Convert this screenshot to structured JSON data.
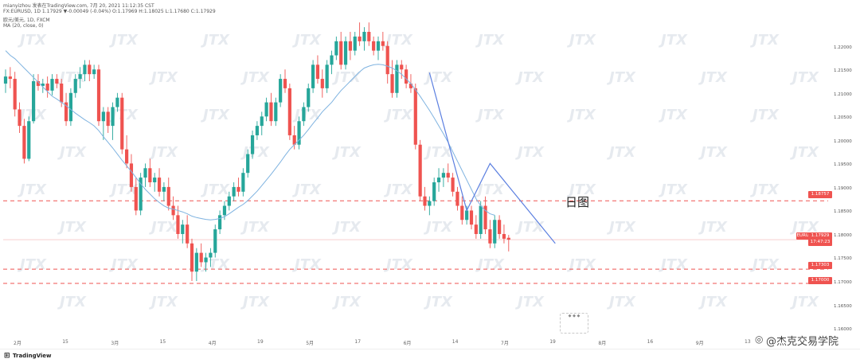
{
  "header": {
    "line1": "mianyizhou 发表在TradingView.com, 7月 20, 2021 11:12:35 CST",
    "line2": "FX:EURUSD, 1D 1.17929 ▼-0.00049 (-0.04%) O:1.17969 H:1.18025 L:1.17680 C:1.17929",
    "line3": "欧元/美元, 1D, FXCM",
    "line4": "MA (20, close, 0)"
  },
  "watermark": "JTX",
  "annotation": "日图",
  "footer_brand": "TradingView",
  "footer_credit": "@杰克交易学院",
  "tags": {
    "r1": "1.18757",
    "price_label": "EURUSD",
    "price": "1.17929",
    "time": "17:47:23",
    "s1": "1.17303",
    "s2": "1.17000"
  },
  "colors": {
    "bull": "#26a69a",
    "bear": "#ef5350",
    "ma": "#7fb3e0",
    "trend": "#5b7fe0",
    "level": "#ef5350"
  },
  "chart_data": {
    "type": "candlestick",
    "symbol": "EURUSD",
    "timeframe": "1D",
    "y_ticks": [
      1.22,
      1.215,
      1.21,
      1.205,
      1.2,
      1.195,
      1.19,
      1.185,
      1.18,
      1.175,
      1.17,
      1.165,
      1.16
    ],
    "y_tick_labels": [
      "1.22000",
      "1.21500",
      "1.21000",
      "1.20500",
      "1.20000",
      "1.19500",
      "1.19000",
      "1.18500",
      "1.18000",
      "1.17500",
      "1.17000",
      "1.16500",
      "1.16000"
    ],
    "ylim": [
      1.1595,
      1.2235
    ],
    "x_labels": [
      "2月",
      "15",
      "3月",
      "15",
      "4月",
      "19",
      "5月",
      "17",
      "6月",
      "14",
      "7月",
      "19",
      "8月",
      "16",
      "9月",
      "13"
    ],
    "levels": [
      1.18757,
      1.17303,
      1.17
    ],
    "candles": [
      {
        "o": 1.2125,
        "h": 1.2155,
        "l": 1.2105,
        "c": 1.214
      },
      {
        "o": 1.214,
        "h": 1.216,
        "l": 1.2115,
        "c": 1.2135
      },
      {
        "o": 1.2135,
        "h": 1.215,
        "l": 1.2055,
        "c": 1.207
      },
      {
        "o": 1.207,
        "h": 1.2085,
        "l": 1.202,
        "c": 1.2035
      },
      {
        "o": 1.2035,
        "h": 1.205,
        "l": 1.1955,
        "c": 1.1965
      },
      {
        "o": 1.1965,
        "h": 1.2055,
        "l": 1.196,
        "c": 1.2045
      },
      {
        "o": 1.2045,
        "h": 1.2145,
        "l": 1.204,
        "c": 1.213
      },
      {
        "o": 1.213,
        "h": 1.2145,
        "l": 1.211,
        "c": 1.212
      },
      {
        "o": 1.212,
        "h": 1.2135,
        "l": 1.2105,
        "c": 1.2125
      },
      {
        "o": 1.2125,
        "h": 1.214,
        "l": 1.2095,
        "c": 1.211
      },
      {
        "o": 1.211,
        "h": 1.2145,
        "l": 1.21,
        "c": 1.2135
      },
      {
        "o": 1.2135,
        "h": 1.2145,
        "l": 1.2115,
        "c": 1.2125
      },
      {
        "o": 1.2125,
        "h": 1.2135,
        "l": 1.2075,
        "c": 1.2085
      },
      {
        "o": 1.2085,
        "h": 1.2105,
        "l": 1.2035,
        "c": 1.2045
      },
      {
        "o": 1.2045,
        "h": 1.2115,
        "l": 1.2035,
        "c": 1.2105
      },
      {
        "o": 1.2105,
        "h": 1.2145,
        "l": 1.2095,
        "c": 1.2135
      },
      {
        "o": 1.2135,
        "h": 1.216,
        "l": 1.2115,
        "c": 1.2145
      },
      {
        "o": 1.2145,
        "h": 1.2175,
        "l": 1.213,
        "c": 1.2165
      },
      {
        "o": 1.2165,
        "h": 1.2175,
        "l": 1.213,
        "c": 1.2145
      },
      {
        "o": 1.2145,
        "h": 1.2165,
        "l": 1.2135,
        "c": 1.2155
      },
      {
        "o": 1.2155,
        "h": 1.2165,
        "l": 1.2035,
        "c": 1.2045
      },
      {
        "o": 1.2045,
        "h": 1.2075,
        "l": 1.2005,
        "c": 1.2065
      },
      {
        "o": 1.2065,
        "h": 1.2075,
        "l": 1.202,
        "c": 1.2035
      },
      {
        "o": 1.2035,
        "h": 1.2085,
        "l": 1.2005,
        "c": 1.2075
      },
      {
        "o": 1.2075,
        "h": 1.2105,
        "l": 1.2065,
        "c": 1.2095
      },
      {
        "o": 1.2095,
        "h": 1.2105,
        "l": 1.1975,
        "c": 1.1985
      },
      {
        "o": 1.1985,
        "h": 1.2015,
        "l": 1.1945,
        "c": 1.1955
      },
      {
        "o": 1.1955,
        "h": 1.1975,
        "l": 1.1895,
        "c": 1.1905
      },
      {
        "o": 1.1905,
        "h": 1.1925,
        "l": 1.1845,
        "c": 1.1855
      },
      {
        "o": 1.1855,
        "h": 1.1935,
        "l": 1.1845,
        "c": 1.1925
      },
      {
        "o": 1.1925,
        "h": 1.1955,
        "l": 1.1905,
        "c": 1.1945
      },
      {
        "o": 1.1945,
        "h": 1.1965,
        "l": 1.1905,
        "c": 1.1915
      },
      {
        "o": 1.1915,
        "h": 1.1935,
        "l": 1.1895,
        "c": 1.1925
      },
      {
        "o": 1.1925,
        "h": 1.1945,
        "l": 1.1885,
        "c": 1.1895
      },
      {
        "o": 1.1895,
        "h": 1.1915,
        "l": 1.1875,
        "c": 1.1905
      },
      {
        "o": 1.1905,
        "h": 1.1925,
        "l": 1.1855,
        "c": 1.1865
      },
      {
        "o": 1.1865,
        "h": 1.1885,
        "l": 1.1835,
        "c": 1.1845
      },
      {
        "o": 1.1845,
        "h": 1.1865,
        "l": 1.1795,
        "c": 1.1805
      },
      {
        "o": 1.1805,
        "h": 1.1835,
        "l": 1.1785,
        "c": 1.1825
      },
      {
        "o": 1.1825,
        "h": 1.1845,
        "l": 1.1775,
        "c": 1.1785
      },
      {
        "o": 1.1785,
        "h": 1.1795,
        "l": 1.1705,
        "c": 1.1725
      },
      {
        "o": 1.1725,
        "h": 1.1775,
        "l": 1.1705,
        "c": 1.1765
      },
      {
        "o": 1.1765,
        "h": 1.1785,
        "l": 1.1735,
        "c": 1.1745
      },
      {
        "o": 1.1745,
        "h": 1.1765,
        "l": 1.1725,
        "c": 1.1755
      },
      {
        "o": 1.1755,
        "h": 1.1775,
        "l": 1.1735,
        "c": 1.1765
      },
      {
        "o": 1.1765,
        "h": 1.1825,
        "l": 1.1755,
        "c": 1.1815
      },
      {
        "o": 1.1815,
        "h": 1.1855,
        "l": 1.1805,
        "c": 1.1845
      },
      {
        "o": 1.1845,
        "h": 1.1875,
        "l": 1.1835,
        "c": 1.1865
      },
      {
        "o": 1.1865,
        "h": 1.1895,
        "l": 1.1855,
        "c": 1.1885
      },
      {
        "o": 1.1885,
        "h": 1.1915,
        "l": 1.1875,
        "c": 1.1905
      },
      {
        "o": 1.1905,
        "h": 1.1925,
        "l": 1.1885,
        "c": 1.1895
      },
      {
        "o": 1.1895,
        "h": 1.1945,
        "l": 1.1885,
        "c": 1.1935
      },
      {
        "o": 1.1935,
        "h": 1.1985,
        "l": 1.1925,
        "c": 1.1975
      },
      {
        "o": 1.1975,
        "h": 1.2025,
        "l": 1.1965,
        "c": 1.2015
      },
      {
        "o": 1.2015,
        "h": 1.2045,
        "l": 1.2005,
        "c": 1.2035
      },
      {
        "o": 1.2035,
        "h": 1.2065,
        "l": 1.2015,
        "c": 1.2055
      },
      {
        "o": 1.2055,
        "h": 1.2095,
        "l": 1.2045,
        "c": 1.2085
      },
      {
        "o": 1.2085,
        "h": 1.2105,
        "l": 1.2035,
        "c": 1.2045
      },
      {
        "o": 1.2045,
        "h": 1.2095,
        "l": 1.2035,
        "c": 1.2085
      },
      {
        "o": 1.2085,
        "h": 1.2145,
        "l": 1.2075,
        "c": 1.2135
      },
      {
        "o": 1.2135,
        "h": 1.2155,
        "l": 1.2105,
        "c": 1.2115
      },
      {
        "o": 1.2115,
        "h": 1.2125,
        "l": 1.2005,
        "c": 1.2015
      },
      {
        "o": 1.2015,
        "h": 1.2035,
        "l": 1.1985,
        "c": 1.1995
      },
      {
        "o": 1.1995,
        "h": 1.2055,
        "l": 1.1985,
        "c": 1.2045
      },
      {
        "o": 1.2045,
        "h": 1.2085,
        "l": 1.2035,
        "c": 1.2075
      },
      {
        "o": 1.2075,
        "h": 1.2125,
        "l": 1.2065,
        "c": 1.2115
      },
      {
        "o": 1.2115,
        "h": 1.2175,
        "l": 1.2105,
        "c": 1.2165
      },
      {
        "o": 1.2165,
        "h": 1.2185,
        "l": 1.2125,
        "c": 1.2135
      },
      {
        "o": 1.2135,
        "h": 1.2155,
        "l": 1.2095,
        "c": 1.2115
      },
      {
        "o": 1.2115,
        "h": 1.2175,
        "l": 1.2105,
        "c": 1.2165
      },
      {
        "o": 1.2165,
        "h": 1.2195,
        "l": 1.2145,
        "c": 1.2185
      },
      {
        "o": 1.2185,
        "h": 1.2225,
        "l": 1.2175,
        "c": 1.2215
      },
      {
        "o": 1.2215,
        "h": 1.2235,
        "l": 1.2155,
        "c": 1.2165
      },
      {
        "o": 1.2165,
        "h": 1.2225,
        "l": 1.2155,
        "c": 1.2215
      },
      {
        "o": 1.2215,
        "h": 1.2235,
        "l": 1.2175,
        "c": 1.2195
      },
      {
        "o": 1.2195,
        "h": 1.2235,
        "l": 1.2185,
        "c": 1.2225
      },
      {
        "o": 1.2225,
        "h": 1.2255,
        "l": 1.2205,
        "c": 1.2215
      },
      {
        "o": 1.2215,
        "h": 1.2245,
        "l": 1.2195,
        "c": 1.2235
      },
      {
        "o": 1.2235,
        "h": 1.2255,
        "l": 1.2205,
        "c": 1.2215
      },
      {
        "o": 1.2215,
        "h": 1.2225,
        "l": 1.2185,
        "c": 1.2195
      },
      {
        "o": 1.2195,
        "h": 1.2225,
        "l": 1.2175,
        "c": 1.2215
      },
      {
        "o": 1.2215,
        "h": 1.2235,
        "l": 1.2195,
        "c": 1.2205
      },
      {
        "o": 1.2205,
        "h": 1.2215,
        "l": 1.2125,
        "c": 1.2145
      },
      {
        "o": 1.2145,
        "h": 1.2175,
        "l": 1.2095,
        "c": 1.2105
      },
      {
        "o": 1.2105,
        "h": 1.2175,
        "l": 1.2095,
        "c": 1.2165
      },
      {
        "o": 1.2165,
        "h": 1.2175,
        "l": 1.2135,
        "c": 1.2155
      },
      {
        "o": 1.2155,
        "h": 1.2165,
        "l": 1.2115,
        "c": 1.2125
      },
      {
        "o": 1.2125,
        "h": 1.2145,
        "l": 1.2105,
        "c": 1.2115
      },
      {
        "o": 1.2115,
        "h": 1.2125,
        "l": 1.1985,
        "c": 1.1995
      },
      {
        "o": 1.1995,
        "h": 1.2005,
        "l": 1.1875,
        "c": 1.1885
      },
      {
        "o": 1.1885,
        "h": 1.1905,
        "l": 1.1855,
        "c": 1.1865
      },
      {
        "o": 1.1865,
        "h": 1.1885,
        "l": 1.1845,
        "c": 1.1875
      },
      {
        "o": 1.1875,
        "h": 1.1925,
        "l": 1.1865,
        "c": 1.1915
      },
      {
        "o": 1.1915,
        "h": 1.1945,
        "l": 1.1895,
        "c": 1.1925
      },
      {
        "o": 1.1925,
        "h": 1.1945,
        "l": 1.1905,
        "c": 1.1935
      },
      {
        "o": 1.1935,
        "h": 1.1955,
        "l": 1.1915,
        "c": 1.1925
      },
      {
        "o": 1.1925,
        "h": 1.1935,
        "l": 1.1885,
        "c": 1.1895
      },
      {
        "o": 1.1895,
        "h": 1.1905,
        "l": 1.1855,
        "c": 1.1865
      },
      {
        "o": 1.1865,
        "h": 1.1885,
        "l": 1.1825,
        "c": 1.1835
      },
      {
        "o": 1.1835,
        "h": 1.1865,
        "l": 1.1825,
        "c": 1.1855
      },
      {
        "o": 1.1855,
        "h": 1.1865,
        "l": 1.1815,
        "c": 1.1825
      },
      {
        "o": 1.1825,
        "h": 1.1845,
        "l": 1.1795,
        "c": 1.1805
      },
      {
        "o": 1.1805,
        "h": 1.1875,
        "l": 1.1795,
        "c": 1.1865
      },
      {
        "o": 1.1865,
        "h": 1.1885,
        "l": 1.1805,
        "c": 1.1815
      },
      {
        "o": 1.1815,
        "h": 1.1835,
        "l": 1.1775,
        "c": 1.1785
      },
      {
        "o": 1.1785,
        "h": 1.1845,
        "l": 1.1775,
        "c": 1.1835
      },
      {
        "o": 1.1835,
        "h": 1.1845,
        "l": 1.1795,
        "c": 1.1805
      },
      {
        "o": 1.1805,
        "h": 1.1825,
        "l": 1.1785,
        "c": 1.1795
      },
      {
        "o": 1.1797,
        "h": 1.1803,
        "l": 1.1768,
        "c": 1.1793
      }
    ],
    "ma20": [
      1.2195,
      1.2185,
      1.2178,
      1.2168,
      1.2158,
      1.2148,
      1.2138,
      1.2128,
      1.2118,
      1.2108,
      1.2098,
      1.2092,
      1.2085,
      1.2078,
      1.207,
      1.2062,
      1.2055,
      1.2048,
      1.2042,
      1.2035,
      1.2025,
      1.2012,
      1.2,
      1.1988,
      1.1975,
      1.1962,
      1.195,
      1.1938,
      1.1925,
      1.1912,
      1.19,
      1.189,
      1.188,
      1.1872,
      1.1865,
      1.186,
      1.1858,
      1.1855,
      1.1852,
      1.1848,
      1.1843,
      1.184,
      1.1838,
      1.1836,
      1.1835,
      1.1836,
      1.1838,
      1.1842,
      1.1848,
      1.1855,
      1.1862,
      1.1868,
      1.1876,
      1.1886,
      1.1896,
      1.1908,
      1.192,
      1.1932,
      1.1945,
      1.1958,
      1.1972,
      1.1985,
      1.1995,
      1.2005,
      1.2015,
      1.2027,
      1.204,
      1.2052,
      1.2065,
      1.2075,
      1.2085,
      1.2098,
      1.211,
      1.212,
      1.213,
      1.214,
      1.215,
      1.2158,
      1.2162,
      1.2165,
      1.2166,
      1.2165,
      1.2162,
      1.2158,
      1.2152,
      1.2145,
      1.2135,
      1.2125,
      1.2112,
      1.2098,
      1.2083,
      1.2068,
      1.2052,
      1.2035,
      1.2018,
      1.2,
      1.198,
      1.196,
      1.194,
      1.192,
      1.19,
      1.188,
      1.1865,
      1.1855,
      1.1848,
      1.1845
    ],
    "trend_lines": [
      [
        {
          "i": 91,
          "p": 1.2148
        },
        {
          "i": 99,
          "p": 1.1855
        },
        {
          "i": 104,
          "p": 1.1955
        },
        {
          "i": 118,
          "p": 1.1785
        }
      ]
    ]
  }
}
